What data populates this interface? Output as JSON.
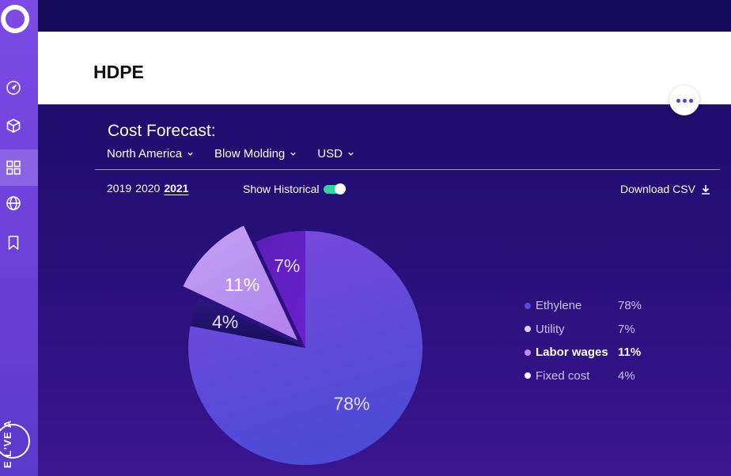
{
  "sidebar": {
    "brand_text": "E L'VE A",
    "icons": [
      "speedometer-icon",
      "cube-icon",
      "grid-icon",
      "globe-icon",
      "bookmark-icon"
    ],
    "active_index": 2
  },
  "header": {
    "title": "HDPE"
  },
  "forecast": {
    "title": "Cost Forecast:",
    "filters": [
      "North America",
      "Blow Molding",
      "USD"
    ],
    "years": [
      "2019",
      "2020",
      "2021"
    ],
    "active_year": "2021",
    "show_historical_label": "Show Historical",
    "show_historical_on": true,
    "download_label": "Download CSV"
  },
  "colors": {
    "accent": "#2fd4a3",
    "ethylene": "#5b4ad6",
    "utility": "#ddd3f7",
    "labor": "#b98ef0",
    "fixed": "#ffffff"
  },
  "chart_data": {
    "type": "pie",
    "categories": [
      "Ethylene",
      "Utility",
      "Labor wages",
      "Fixed cost"
    ],
    "values": [
      78,
      7,
      11,
      4
    ],
    "labels": [
      "78%",
      "7%",
      "11%",
      "4%"
    ],
    "highlighted": "Labor wages",
    "legend_position": "right"
  }
}
